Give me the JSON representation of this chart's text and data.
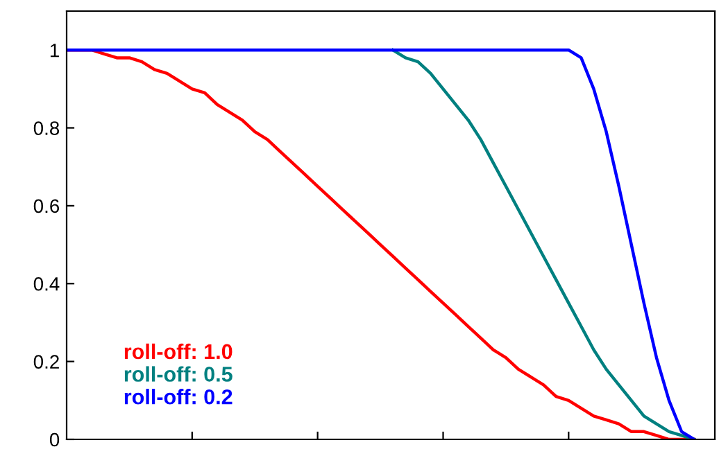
{
  "chart_data": {
    "type": "line",
    "categories": [
      null,
      null,
      null,
      null,
      null,
      null,
      null,
      null,
      null,
      null,
      null,
      null,
      null,
      null,
      null,
      null,
      null,
      null,
      null,
      null,
      null,
      null,
      null,
      null,
      null,
      null,
      null,
      null,
      null,
      null,
      null,
      null,
      null,
      null,
      null,
      null,
      null,
      null,
      null,
      null,
      null,
      null,
      null,
      null,
      null,
      null,
      null,
      null,
      null,
      null,
      null
    ],
    "ylim": [
      0,
      1.1
    ],
    "yticks": [
      0,
      0.2,
      0.4,
      0.6,
      0.8,
      1
    ],
    "legend": "bottom left",
    "line_style": "solid",
    "series": [
      {
        "name": "roll-off: 1.0",
        "color": "#ff0000",
        "values": [
          1,
          1,
          1,
          0.99,
          0.98,
          0.98,
          0.97,
          0.95,
          0.94,
          0.92,
          0.9,
          0.89,
          0.86,
          0.84,
          0.82,
          0.79,
          0.77,
          0.74,
          0.71,
          0.68,
          0.65,
          0.62,
          0.59,
          0.56,
          0.53,
          0.5,
          0.47,
          0.44,
          0.41,
          0.38,
          0.35,
          0.32,
          0.29,
          0.26,
          0.23,
          0.21,
          0.18,
          0.16,
          0.14,
          0.11,
          0.1,
          0.08,
          0.06,
          0.05,
          0.04,
          0.02,
          0.02,
          0.01,
          0,
          0,
          0
        ]
      },
      {
        "name": "roll-off: 0.5",
        "color": "#008080",
        "values": [
          null,
          null,
          null,
          null,
          null,
          null,
          null,
          null,
          null,
          null,
          null,
          null,
          null,
          null,
          null,
          null,
          null,
          null,
          null,
          null,
          null,
          null,
          null,
          null,
          null,
          null,
          1,
          0.98,
          0.97,
          0.94,
          0.9,
          0.86,
          0.82,
          0.77,
          0.71,
          0.65,
          0.59,
          0.53,
          0.47,
          0.41,
          0.35,
          0.29,
          0.23,
          0.18,
          0.14,
          0.1,
          0.06,
          0.04,
          0.02,
          0.01,
          0
        ]
      },
      {
        "name": "roll-off: 0.2",
        "color": "#0000ff",
        "values": [
          1,
          1,
          1,
          1,
          1,
          1,
          1,
          1,
          1,
          1,
          1,
          1,
          1,
          1,
          1,
          1,
          1,
          1,
          1,
          1,
          1,
          1,
          1,
          1,
          1,
          1,
          1,
          1,
          1,
          1,
          1,
          1,
          1,
          1,
          1,
          1,
          1,
          1,
          1,
          1,
          1,
          0.98,
          0.9,
          0.79,
          0.65,
          0.5,
          0.35,
          0.21,
          0.1,
          0.02,
          0
        ]
      }
    ]
  }
}
